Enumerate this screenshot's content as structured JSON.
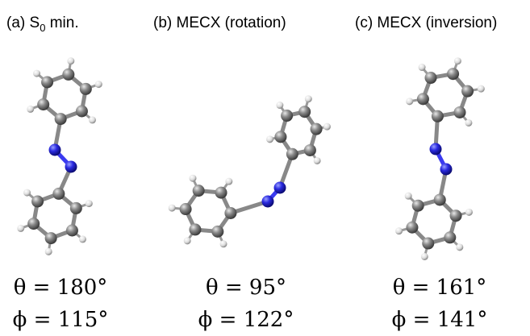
{
  "panels": [
    {
      "title": "(a) S",
      "title_sub": "0",
      "title_end": " min.",
      "theta": "θ = 180°",
      "phi": "ϕ = 115°"
    },
    {
      "title": "(b) MECX (rotation)",
      "theta": "θ = 95°",
      "phi": "ϕ = 122°"
    },
    {
      "title": "(c) MECX (inversion)",
      "theta": "θ = 161°",
      "phi": "ϕ = 141°"
    }
  ]
}
